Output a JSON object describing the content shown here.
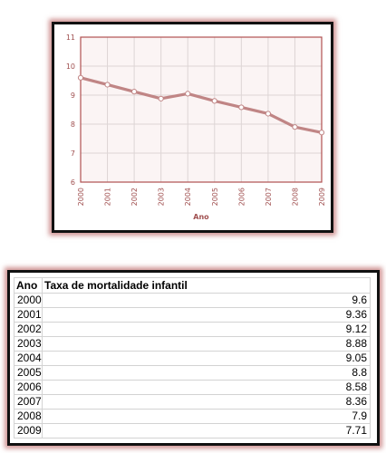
{
  "colors": {
    "line": "#c08585",
    "plot_bg": "#fbf4f4",
    "axis": "#b05050",
    "label": "#a05050",
    "grid": "#ddd5d5"
  },
  "chart_data": {
    "type": "line",
    "x": [
      "2000",
      "2001",
      "2002",
      "2003",
      "2004",
      "2005",
      "2006",
      "2007",
      "2008",
      "2009"
    ],
    "series": [
      {
        "values": [
          9.6,
          9.36,
          9.12,
          8.88,
          9.05,
          8.8,
          8.58,
          8.36,
          7.9,
          7.71
        ]
      }
    ],
    "xlabel": "Ano",
    "ylabel": "",
    "ylim": [
      6,
      11
    ],
    "yticks": [
      "6",
      "7",
      "8",
      "9",
      "10",
      "11"
    ],
    "grid": true
  },
  "table": {
    "headers": [
      "Ano",
      "Taxa de mortalidade infantil"
    ],
    "rows": [
      [
        "2000",
        "9.6"
      ],
      [
        "2001",
        "9.36"
      ],
      [
        "2002",
        "9.12"
      ],
      [
        "2003",
        "8.88"
      ],
      [
        "2004",
        "9.05"
      ],
      [
        "2005",
        "8.8"
      ],
      [
        "2006",
        "8.58"
      ],
      [
        "2007",
        "8.36"
      ],
      [
        "2008",
        "7.9"
      ],
      [
        "2009",
        "7.71"
      ]
    ]
  }
}
